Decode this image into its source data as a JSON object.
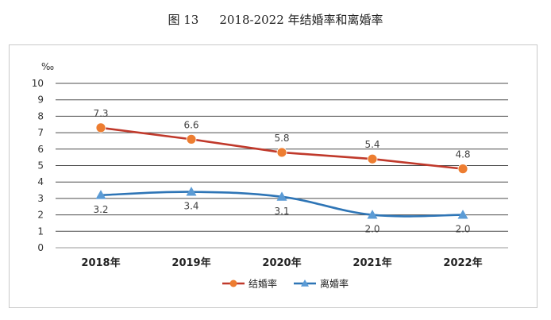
{
  "figure": {
    "number": "图 13",
    "title": "2018-2022 年结婚率和离婚率"
  },
  "chart_data": {
    "type": "line",
    "unit": "‰",
    "categories": [
      "2018年",
      "2019年",
      "2020年",
      "2021年",
      "2022年"
    ],
    "ylim": [
      0,
      10
    ],
    "yticks": [
      0,
      1,
      2,
      3,
      4,
      5,
      6,
      7,
      8,
      9,
      10
    ],
    "grid": true,
    "legend_position": "bottom",
    "series": [
      {
        "name": "结婚率",
        "values": [
          7.3,
          6.6,
          5.8,
          5.4,
          4.8
        ],
        "labels": [
          "7.3",
          "6.6",
          "5.8",
          "5.4",
          "4.8"
        ],
        "color": "#c0392b",
        "marker": "circle",
        "marker_color": "#ed7d31",
        "label_position": "above",
        "smooth": false
      },
      {
        "name": "离婚率",
        "values": [
          3.2,
          3.4,
          3.1,
          2.0,
          2.0
        ],
        "labels": [
          "3.2",
          "3.4",
          "3.1",
          "2.0",
          "2.0"
        ],
        "color": "#2e75b6",
        "marker": "triangle",
        "marker_color": "#5b9bd5",
        "label_position": "below",
        "smooth": true
      }
    ]
  }
}
